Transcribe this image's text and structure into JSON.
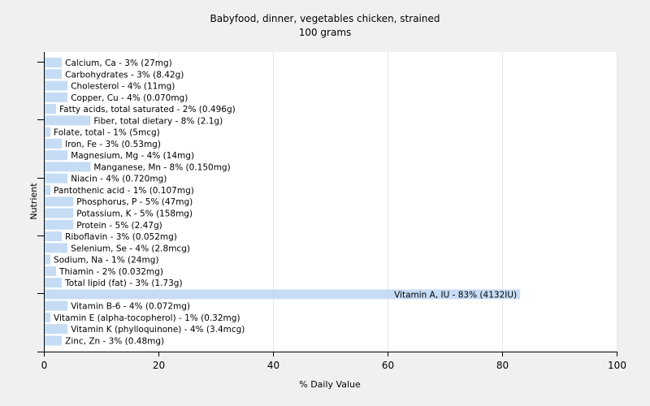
{
  "chart_data": {
    "type": "bar",
    "orientation": "horizontal",
    "title": "Babyfood, dinner, vegetables chicken, strained",
    "subtitle": "100 grams",
    "xlabel": "% Daily Value",
    "ylabel": "Nutrient",
    "xlim": [
      0,
      100
    ],
    "xticks": [
      0,
      20,
      40,
      60,
      80,
      100
    ],
    "grid": true,
    "bar_color": "#c6dcf5",
    "categories": [
      "Calcium, Ca",
      "Carbohydrates",
      "Cholesterol",
      "Copper, Cu",
      "Fatty acids, total saturated",
      "Fiber, total dietary",
      "Folate, total",
      "Iron, Fe",
      "Magnesium, Mg",
      "Manganese, Mn",
      "Niacin",
      "Pantothenic acid",
      "Phosphorus, P",
      "Potassium, K",
      "Protein",
      "Riboflavin",
      "Selenium, Se",
      "Sodium, Na",
      "Thiamin",
      "Total lipid (fat)",
      "Vitamin A, IU",
      "Vitamin B-6",
      "Vitamin E (alpha-tocopherol)",
      "Vitamin K (phylloquinone)",
      "Zinc, Zn"
    ],
    "values": [
      3,
      3,
      4,
      4,
      2,
      8,
      1,
      3,
      4,
      8,
      4,
      1,
      5,
      5,
      5,
      3,
      4,
      1,
      2,
      3,
      83,
      4,
      1,
      4,
      3
    ],
    "labels": [
      "Calcium, Ca - 3% (27mg)",
      "Carbohydrates - 3% (8.42g)",
      "Cholesterol - 4% (11mg)",
      "Copper, Cu - 4% (0.070mg)",
      "Fatty acids, total saturated - 2% (0.496g)",
      "Fiber, total dietary - 8% (2.1g)",
      "Folate, total - 1% (5mcg)",
      "Iron, Fe - 3% (0.53mg)",
      "Magnesium, Mg - 4% (14mg)",
      "Manganese, Mn - 8% (0.150mg)",
      "Niacin - 4% (0.720mg)",
      "Pantothenic acid - 1% (0.107mg)",
      "Phosphorus, P - 5% (47mg)",
      "Potassium, K - 5% (158mg)",
      "Protein - 5% (2.47g)",
      "Riboflavin - 3% (0.052mg)",
      "Selenium, Se - 4% (2.8mcg)",
      "Sodium, Na - 1% (24mg)",
      "Thiamin - 2% (0.032mg)",
      "Total lipid (fat) - 3% (1.73g)",
      "Vitamin A, IU - 83% (4132IU)",
      "Vitamin B-6 - 4% (0.072mg)",
      "Vitamin E (alpha-tocopherol) - 1% (0.32mg)",
      "Vitamin K (phylloquinone) - 4% (3.4mcg)",
      "Zinc, Zn - 3% (0.48mg)"
    ]
  }
}
